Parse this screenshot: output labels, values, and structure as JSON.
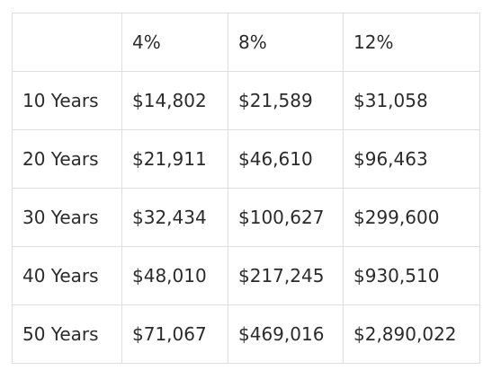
{
  "table": {
    "headers": [
      "",
      "4%",
      "8%",
      "12%"
    ],
    "rows": [
      {
        "label": "10 Years",
        "values": [
          "$14,802",
          "$21,589",
          "$31,058"
        ]
      },
      {
        "label": "20 Years",
        "values": [
          "$21,911",
          "$46,610",
          "$96,463"
        ]
      },
      {
        "label": "30 Years",
        "values": [
          "$32,434",
          "$100,627",
          "$299,600"
        ]
      },
      {
        "label": "40 Years",
        "values": [
          "$48,010",
          "$217,245",
          "$930,510"
        ]
      },
      {
        "label": "50 Years",
        "values": [
          "$71,067",
          "$469,016",
          "$2,890,022"
        ]
      }
    ]
  }
}
